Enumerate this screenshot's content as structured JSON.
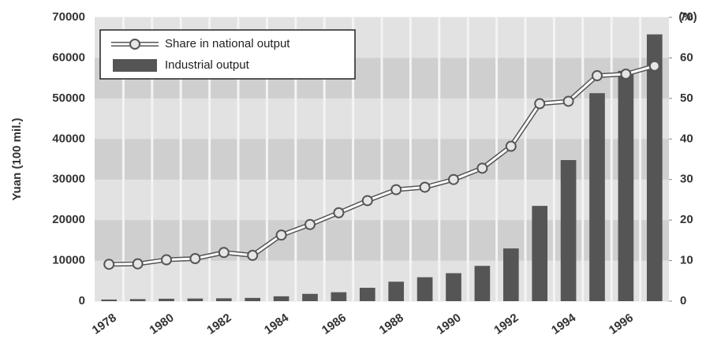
{
  "chart_data": {
    "type": "bar",
    "ylabel": "Yuan (100 mil.)",
    "y2label": "(%)",
    "categories": [
      "1978",
      null,
      "1980",
      null,
      "1982",
      null,
      "1984",
      null,
      "1986",
      null,
      "1988",
      null,
      "1990",
      null,
      "1992",
      null,
      "1994",
      null,
      "1996",
      null
    ],
    "series": [
      {
        "name": "Share in national output",
        "type": "line",
        "axis": "y2",
        "color": "#555555",
        "values": [
          9.1,
          9.2,
          10.2,
          10.5,
          12.0,
          11.3,
          16.3,
          18.9,
          21.8,
          24.8,
          27.5,
          28.1,
          30.0,
          32.8,
          38.2,
          48.7,
          49.3,
          55.6,
          56.0,
          58.0
        ]
      },
      {
        "name": "Industrial output",
        "type": "bar",
        "color": "#555555",
        "values": [
          400,
          500,
          600,
          650,
          700,
          800,
          1200,
          1800,
          2200,
          3300,
          4800,
          5900,
          6900,
          8700,
          13000,
          23500,
          34800,
          51300,
          56800,
          65800
        ]
      }
    ],
    "ylim": [
      0,
      70000
    ],
    "yticks": [
      0,
      10000,
      20000,
      30000,
      40000,
      50000,
      60000,
      70000
    ],
    "y2lim": [
      0,
      70
    ],
    "y2ticks": [
      0,
      10,
      20,
      30,
      40,
      50,
      60,
      70
    ],
    "grid": true,
    "legend": "upper left"
  }
}
